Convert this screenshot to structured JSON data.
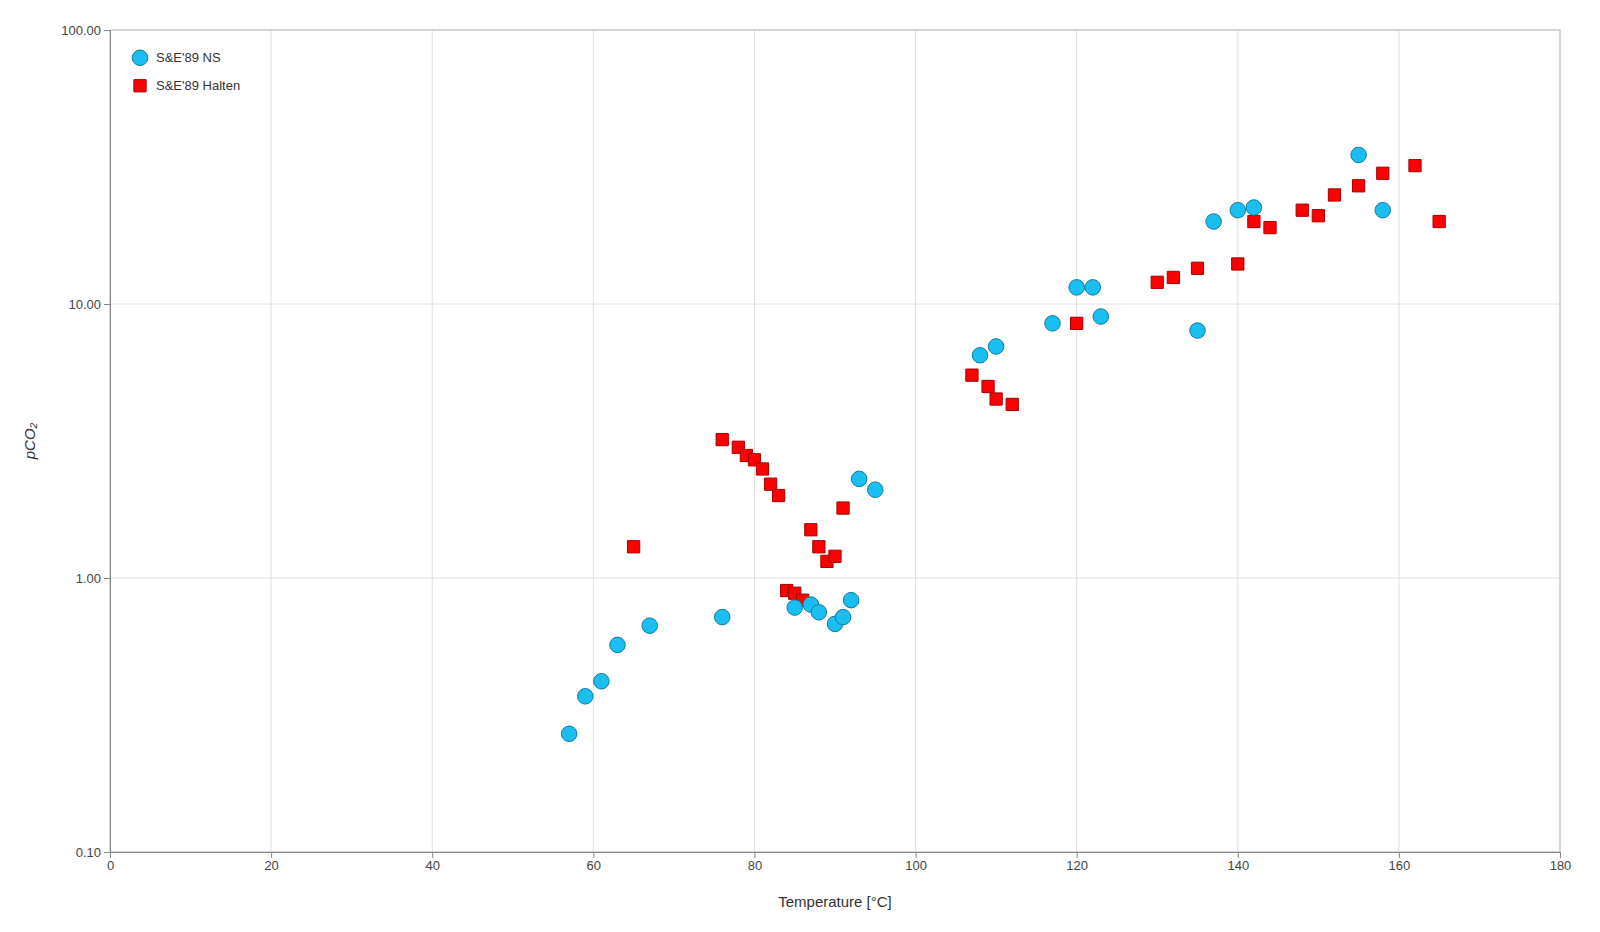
{
  "chart_data": {
    "type": "scatter",
    "xlabel": "Temperature [°C]",
    "ylabel": "pCO₂",
    "log": "y",
    "grid": true,
    "legend": "upper left",
    "xlim": [
      0,
      180
    ],
    "ylim": [
      0.1,
      100
    ],
    "xticks": [
      0,
      20,
      40,
      60,
      80,
      100,
      120,
      140,
      160,
      180
    ],
    "yticks": [
      {
        "value": 0.1,
        "label": "0.10"
      },
      {
        "value": 1.0,
        "label": "1.00"
      },
      {
        "value": 10.0,
        "label": "10.00"
      },
      {
        "value": 100.0,
        "label": "100.00"
      }
    ],
    "series": [
      {
        "name": "S&E'89 NS",
        "color": "#1BBEF0",
        "marker": "circle",
        "x": [
          57,
          59,
          61,
          63,
          67,
          76,
          85,
          87,
          88,
          90,
          91,
          92,
          93,
          95,
          108,
          110,
          117,
          120,
          122,
          123,
          135,
          137,
          140,
          142,
          155,
          158
        ],
        "values": [
          0.27,
          0.37,
          0.42,
          0.57,
          0.67,
          0.72,
          0.78,
          0.8,
          0.75,
          0.68,
          0.72,
          0.83,
          2.3,
          2.1,
          6.5,
          7.0,
          8.5,
          11.5,
          11.5,
          9.0,
          8.0,
          20.0,
          22.0,
          22.5,
          35.0,
          22.0
        ]
      },
      {
        "name": "S&E'89 Halten",
        "color": "#FF0000",
        "marker": "square",
        "x": [
          65,
          76,
          78,
          79,
          80,
          81,
          82,
          83,
          84,
          85,
          86,
          87,
          88,
          89,
          90,
          91,
          107,
          109,
          110,
          112,
          120,
          130,
          132,
          135,
          140,
          142,
          144,
          148,
          150,
          152,
          155,
          158,
          162,
          165
        ],
        "values": [
          1.3,
          3.2,
          3.0,
          2.8,
          2.7,
          2.5,
          2.2,
          2.0,
          0.9,
          0.88,
          0.83,
          1.5,
          1.3,
          1.15,
          1.2,
          1.8,
          5.5,
          5.0,
          4.5,
          4.3,
          8.5,
          12.0,
          12.5,
          13.5,
          14.0,
          20.0,
          19.0,
          22.0,
          21.0,
          25.0,
          27.0,
          30.0,
          32.0,
          20.0
        ]
      }
    ]
  }
}
